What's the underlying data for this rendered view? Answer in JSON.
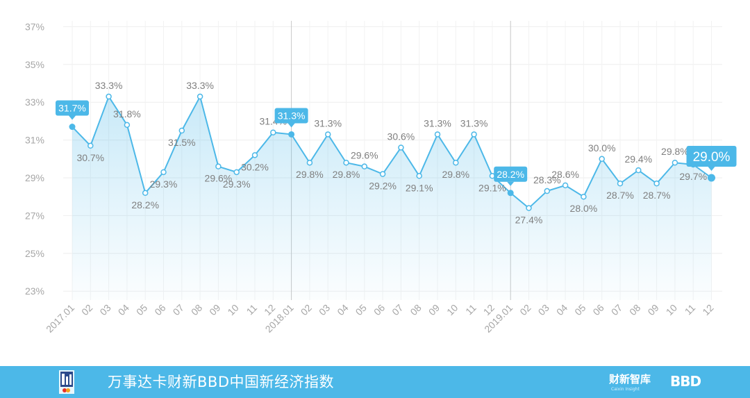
{
  "chart_data": {
    "type": "area",
    "y_ticks": [
      "23%",
      "25%",
      "27%",
      "29%",
      "31%",
      "33%",
      "35%",
      "37%"
    ],
    "ylim": [
      22.5,
      37.5
    ],
    "x_labels": [
      "2017.01",
      "02",
      "03",
      "04",
      "05",
      "06",
      "07",
      "08",
      "09",
      "10",
      "11",
      "12",
      "2018.01",
      "02",
      "03",
      "04",
      "05",
      "06",
      "07",
      "08",
      "09",
      "10",
      "11",
      "12",
      "2019.01",
      "02",
      "03",
      "04",
      "05",
      "06",
      "07",
      "08",
      "09",
      "10",
      "11",
      "12"
    ],
    "series": [
      {
        "values": [
          31.7,
          30.7,
          33.3,
          31.8,
          28.2,
          29.3,
          31.5,
          33.3,
          29.6,
          29.3,
          30.2,
          31.4,
          31.3,
          29.8,
          31.3,
          29.8,
          29.6,
          29.2,
          30.6,
          29.1,
          31.3,
          29.8,
          31.3,
          29.1,
          28.2,
          27.4,
          28.3,
          28.6,
          28.0,
          30.0,
          28.7,
          29.4,
          28.7,
          29.8,
          29.7,
          29.0
        ]
      }
    ],
    "point_labels": [
      "31.7%",
      "30.7%",
      "33.3%",
      "31.8%",
      "28.2%",
      "29.3%",
      "31.5%",
      "33.3%",
      "29.6%",
      "29.3%",
      "30.2%",
      "31.4%",
      "31.3%",
      "29.8%",
      "31.3%",
      "29.8%",
      "29.6%",
      "29.2%",
      "30.6%",
      "29.1%",
      "31.3%",
      "29.8%",
      "31.3%",
      "29.1%",
      "28.2%",
      "27.4%",
      "28.3%",
      "28.6%",
      "28.0%",
      "30.0%",
      "28.7%",
      "29.4%",
      "28.7%",
      "29.8%",
      "29.7%",
      "29.0%"
    ],
    "label_above": [
      true,
      false,
      true,
      true,
      false,
      false,
      false,
      true,
      false,
      false,
      false,
      true,
      true,
      false,
      true,
      false,
      true,
      false,
      true,
      false,
      true,
      false,
      true,
      false,
      true,
      false,
      true,
      true,
      false,
      true,
      false,
      true,
      false,
      true,
      false,
      true
    ],
    "highlighted": [
      0,
      12,
      24,
      35
    ],
    "vertical_gridlines": [
      12,
      24
    ],
    "line_color": "#4cb8e8",
    "label_color": "#7f7f7f",
    "axis_text_color": "#a6a6a6",
    "grid": true
  },
  "footer": {
    "title": "万事达卡财新BBD中国新经济指数",
    "brand_caixin": "财新智库",
    "brand_caixin_sub": "Caixin Insight",
    "brand_bbd": "BBD",
    "background": "#4cb8e8"
  }
}
